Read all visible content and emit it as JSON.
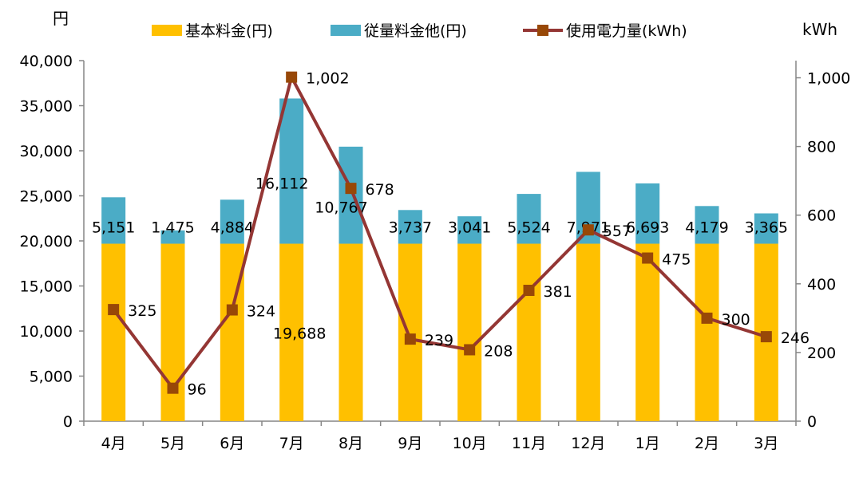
{
  "chart_data": {
    "type": "bar",
    "stacked": true,
    "categories": [
      "4月",
      "5月",
      "6月",
      "7月",
      "8月",
      "9月",
      "10月",
      "11月",
      "12月",
      "1月",
      "2月",
      "3月"
    ],
    "series": [
      {
        "name": "基本料金(円)",
        "type": "bar",
        "axis": "left",
        "color": "#FFC000",
        "values": [
          19688,
          19688,
          19688,
          19688,
          19688,
          19688,
          19688,
          19688,
          19688,
          19688,
          19688,
          19688
        ]
      },
      {
        "name": "従量料金他(円)",
        "type": "bar",
        "axis": "left",
        "color": "#4BACC6",
        "values": [
          5151,
          1475,
          4884,
          16112,
          10767,
          3737,
          3041,
          5524,
          7971,
          6693,
          4179,
          3365
        ]
      },
      {
        "name": "使用電力量(kWh)",
        "type": "line",
        "axis": "right",
        "color": "#943634",
        "marker_color": "#984807",
        "values": [
          325,
          96,
          324,
          1002,
          678,
          239,
          208,
          381,
          557,
          475,
          300,
          246
        ]
      }
    ],
    "series_labels": {
      "bar2": [
        "5,151",
        "1,475",
        "4,884",
        "16,112",
        "10,767",
        "3,737",
        "3,041",
        "5,524",
        "7,971",
        "6,693",
        "4,179",
        "3,365"
      ],
      "line": [
        "325",
        "96",
        "324",
        "1,002",
        "678",
        "239",
        "208",
        "381",
        "557",
        "475",
        "300",
        "246"
      ],
      "base_shown": "19,688"
    },
    "y_left": {
      "unit": "円",
      "min": 0,
      "max": 40000,
      "step": 5000,
      "ticks": [
        "0",
        "5,000",
        "10,000",
        "15,000",
        "20,000",
        "25,000",
        "30,000",
        "35,000",
        "40,000"
      ]
    },
    "y_right": {
      "unit": "kWh",
      "min": 0,
      "max": 1050,
      "step": 200,
      "ticks": [
        "0",
        "200",
        "400",
        "600",
        "800",
        "1,000"
      ]
    },
    "legend_position": "top",
    "grid": false
  }
}
